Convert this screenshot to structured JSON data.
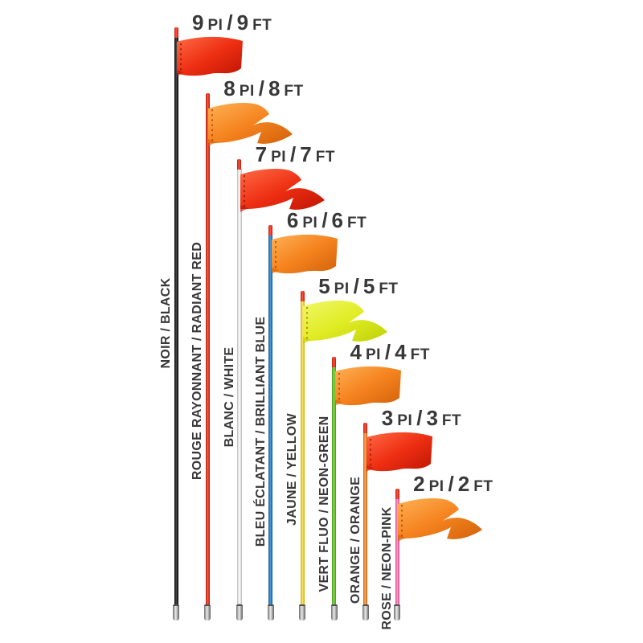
{
  "page": {
    "background": "#ffffff",
    "text_color": "#383838"
  },
  "palette": {
    "red": {
      "light": "#ff6b45",
      "base": "#ee2f13",
      "dark": "#bf1503",
      "stitch": "#801200"
    },
    "orange": {
      "light": "#ffb155",
      "base": "#f5831f",
      "dark": "#d2620a",
      "stitch": "#a83800"
    },
    "neon-yellow": {
      "light": "#f0f868",
      "base": "#e0ec24",
      "dark": "#bfd106",
      "stitch": "#c05c00"
    }
  },
  "pole_tip_color": {
    "light": "#ff5340",
    "dark": "#c21808"
  },
  "ferrule_color": {
    "light": "#ececec",
    "dark": "#5f5f5f"
  },
  "flags": [
    {
      "feet": 9,
      "size_label": "9 PI / 9 FT",
      "color_label": "NOIR / BLACK",
      "pole": {
        "light": "#4a4a4a",
        "base": "#222222",
        "dark": "#000000"
      },
      "flag_shape": "rectangle",
      "flag_color": "red"
    },
    {
      "feet": 8,
      "size_label": "8 PI / 8 FT",
      "color_label": "ROUGE RAYONNANT / RADIANT RED",
      "pole": {
        "light": "#ff5a42",
        "base": "#e82715",
        "dark": "#b81404"
      },
      "flag_shape": "pennant",
      "flag_color": "orange"
    },
    {
      "feet": 7,
      "size_label": "7 PI / 7 FT",
      "color_label": "BLANC / WHITE",
      "pole": {
        "light": "#ffffff",
        "base": "#f2f2f0",
        "dark": "#d6d6d4",
        "border": "#c4c4c2"
      },
      "flag_shape": "pennant",
      "flag_color": "red"
    },
    {
      "feet": 6,
      "size_label": "6 PI / 6 FT",
      "color_label": "BLEU ÉCLATANT / BRILLIANT BLUE",
      "pole": {
        "light": "#4b9ada",
        "base": "#1d79c6",
        "dark": "#0d5698"
      },
      "flag_shape": "rectangle",
      "flag_color": "orange"
    },
    {
      "feet": 5,
      "size_label": "5 PI / 5 FT",
      "color_label": "JAUNE / YELLOW",
      "pole": {
        "light": "#fae468",
        "base": "#f0d02f",
        "dark": "#cfae12"
      },
      "flag_shape": "pennant",
      "flag_color": "neon-yellow"
    },
    {
      "feet": 4,
      "size_label": "4 PI / 4 FT",
      "color_label": "VERT FLUO / NEON-GREEN",
      "pole": {
        "light": "#8ed84a",
        "base": "#66c22c",
        "dark": "#3f9c14"
      },
      "flag_shape": "rectangle",
      "flag_color": "orange"
    },
    {
      "feet": 3,
      "size_label": "3 PI / 3 FT",
      "color_label": "ORANGE / ORANGE",
      "pole": {
        "light": "#ffa757",
        "base": "#f1821f",
        "dark": "#cc5f08"
      },
      "flag_shape": "rectangle",
      "flag_color": "red"
    },
    {
      "feet": 2,
      "size_label": "2 PI / 2 FT",
      "color_label": "ROSE / NEON-PINK",
      "pole": {
        "light": "#ff9ccb",
        "base": "#f268ae",
        "dark": "#d6408c"
      },
      "flag_shape": "pennant",
      "flag_color": "orange"
    }
  ]
}
